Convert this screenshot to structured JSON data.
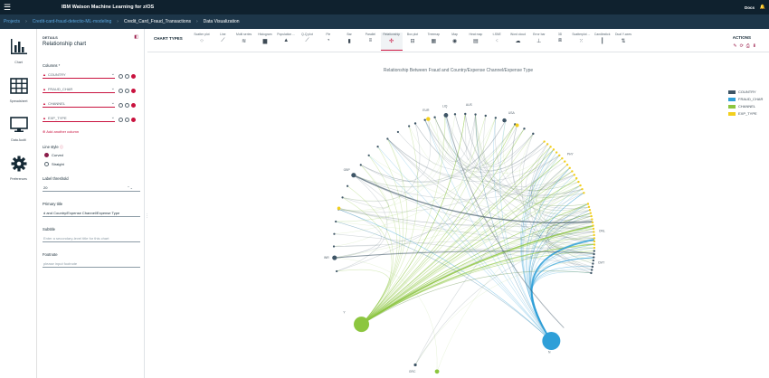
{
  "app": {
    "menu_glyph": "☰",
    "title": "IBM Watson Machine Learning for z/OS",
    "user": "Docs",
    "bell_glyph": "🔔"
  },
  "breadcrumb": {
    "items": [
      "Projects",
      "Credit-card-fraud-detectio-ML-modeling",
      "Credit_Card_Fraud_Transactions",
      "Data Visualization"
    ],
    "separator": "›"
  },
  "leftnav": {
    "items": [
      {
        "label": "Chart",
        "icon": "bar-chart-icon"
      },
      {
        "label": "Spreadsheet",
        "icon": "grid-icon"
      },
      {
        "label": "Data Audit",
        "icon": "monitor-icon"
      },
      {
        "label": "Preferences",
        "icon": "gear-icon"
      }
    ]
  },
  "details": {
    "header": "DETAILS",
    "chart_name": "Relationship chart",
    "collapse_glyph": "◧",
    "columns_label": "Columns *",
    "columns": [
      "COUNTRY",
      "FRAUD_CHAR",
      "CHANNEL",
      "EXP_TYPE"
    ],
    "warn_glyph": "▲",
    "chevron_glyph": "⌄",
    "add_column_label": "⊕  Add another column",
    "line_style_label": "Line style",
    "info_glyph": "ⓘ",
    "line_styles": [
      {
        "label": "Curved",
        "selected": true
      },
      {
        "label": "Straight",
        "selected": false
      }
    ],
    "label_threshold_label": "Label threshold",
    "label_threshold_value": "20",
    "stepper_glyph": "⌃⌄",
    "primary_title_label": "Primary title",
    "primary_title_value": "d and Country/Expense Channel/Expense Type",
    "subtitle_label": "Subtitle",
    "subtitle_placeholder": "Enter a secondary-level title for this chart",
    "footnote_label": "Footnote",
    "footnote_placeholder": "please input footnote",
    "splitter_glyph": "⋮"
  },
  "chart_types": {
    "header": "CHART TYPES",
    "items": [
      {
        "label": "Scatter plot",
        "icon": "⁘"
      },
      {
        "label": "Line",
        "icon": "⟋"
      },
      {
        "label": "Multi series",
        "icon": "≋"
      },
      {
        "label": "Histogram",
        "icon": "▆"
      },
      {
        "label": "Population ...",
        "icon": "▲"
      },
      {
        "label": "Q-Q plot",
        "icon": "⟋"
      },
      {
        "label": "Pie",
        "icon": "◔"
      },
      {
        "label": "Bar",
        "icon": "▮"
      },
      {
        "label": "Parallel",
        "icon": "≡"
      },
      {
        "label": "Relationship",
        "icon": "✣",
        "active": true
      },
      {
        "label": "Box plot",
        "icon": "⊟"
      },
      {
        "label": "Treemap",
        "icon": "▦"
      },
      {
        "label": "Map",
        "icon": "◉"
      },
      {
        "label": "Heat map",
        "icon": "▤"
      },
      {
        "label": "t-SNE",
        "icon": "⁖"
      },
      {
        "label": "Word cloud",
        "icon": "☁"
      },
      {
        "label": "Error bar",
        "icon": "⊥"
      },
      {
        "label": "3D",
        "icon": "⧈"
      },
      {
        "label": "Scatterplot ...",
        "icon": "⁙"
      },
      {
        "label": "Candlestick",
        "icon": "┃"
      },
      {
        "label": "Dual Y-axes",
        "icon": "⇅"
      }
    ],
    "actions_label": "ACTIONS",
    "action_glyphs": [
      "✎",
      "⟳",
      "⎙",
      "⬇"
    ]
  },
  "chart_data": {
    "type": "relationship",
    "title": "Relationship Between Fraud and Country/Expense Channel/Expense Type",
    "legend": [
      {
        "name": "COUNTRY",
        "color": "#3e5566"
      },
      {
        "name": "FRAUD_CHAR",
        "color": "#2e9fd8"
      },
      {
        "name": "CHANNEL",
        "color": "#8cc63f"
      },
      {
        "name": "EXP_TYPE",
        "color": "#f2cf1d"
      }
    ],
    "node_labels": [
      "Y",
      "N",
      "INR",
      "GBP",
      "EUR",
      "AUS",
      "USA",
      "PHY",
      "ONL",
      "CMT",
      "LIQ",
      "GRC"
    ]
  }
}
